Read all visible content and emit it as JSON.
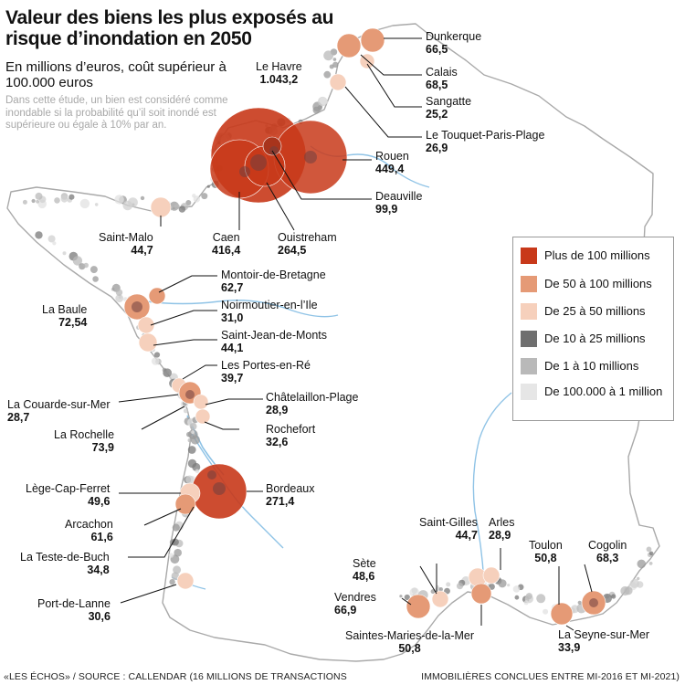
{
  "header": {
    "title": "Valeur des biens les plus exposés au risque d’inondation en 2050",
    "subtitle": "En millions d’euros, coût supérieur à 100.000 euros",
    "note": "Dans cette étude, un bien est considéré comme inondable si la probabilité qu’il soit inondé est supérieure ou égale à 10% par an."
  },
  "legend": {
    "items": [
      {
        "label": "Plus de 100 millions",
        "color": "#c8391a"
      },
      {
        "label": "De 50 à 100 millions",
        "color": "#e59a76"
      },
      {
        "label": "De 25 à 50 millions",
        "color": "#f6d0bc"
      },
      {
        "label": "De 10 à 25 millions",
        "color": "#6f6f6f"
      },
      {
        "label": "De 1 à 10 millions",
        "color": "#b9b9b9"
      },
      {
        "label": "De 100.000 à 1 million",
        "color": "#e6e6e6"
      }
    ]
  },
  "colors": {
    "coast": "#a9a9a9",
    "river": "#8fc3e6",
    "land": "#ffffff",
    "leader": "#111111"
  },
  "cities": {
    "le_havre": {
      "name": "Le Havre",
      "value": "1.043,2"
    },
    "rouen": {
      "name": "Rouen",
      "value": "449,4"
    },
    "deauville": {
      "name": "Deauville",
      "value": "99,9"
    },
    "caen": {
      "name": "Caen",
      "value": "416,4"
    },
    "ouistreham": {
      "name": "Ouistreham",
      "value": "264,5"
    },
    "saint_malo": {
      "name": "Saint-Malo",
      "value": "44,7"
    },
    "dunkerque": {
      "name": "Dunkerque",
      "value": "66,5"
    },
    "calais": {
      "name": "Calais",
      "value": "68,5"
    },
    "sangatte": {
      "name": "Sangatte",
      "value": "25,2"
    },
    "le_touquet": {
      "name": "Le Touquet-Paris-Plage",
      "value": "26,9"
    },
    "montoir": {
      "name": "Montoir-de-Bretagne",
      "value": "62,7"
    },
    "la_baule": {
      "name": "La Baule",
      "value": "72,54"
    },
    "noirmoutier": {
      "name": "Noirmoutier-en-l’Ile",
      "value": "31,0"
    },
    "saint_jean": {
      "name": "Saint-Jean-de-Monts",
      "value": "44,1"
    },
    "portes_en_re": {
      "name": "Les Portes-en-Ré",
      "value": "39,7"
    },
    "la_couarde": {
      "name": "La Couarde-sur-Mer",
      "value": "28,7"
    },
    "chatelaillon": {
      "name": "Châtelaillon-Plage",
      "value": "28,9"
    },
    "la_rochelle": {
      "name": "La Rochelle",
      "value": "73,9"
    },
    "rochefort": {
      "name": "Rochefort",
      "value": "32,6"
    },
    "lege_cap_ferret": {
      "name": "Lège-Cap-Ferret",
      "value": "49,6"
    },
    "bordeaux": {
      "name": "Bordeaux",
      "value": "271,4"
    },
    "arcachon": {
      "name": "Arcachon",
      "value": "61,6"
    },
    "la_teste": {
      "name": "La Teste-de-Buch",
      "value": "34,8"
    },
    "port_de_lanne": {
      "name": "Port-de-Lanne",
      "value": "30,6"
    },
    "saint_gilles": {
      "name": "Saint-Gilles",
      "value": "44,7"
    },
    "arles": {
      "name": "Arles",
      "value": "28,9"
    },
    "sete": {
      "name": "Sète",
      "value": "48,6"
    },
    "vendres": {
      "name": "Vendres",
      "value": "66,9"
    },
    "saintes_maries": {
      "name": "Saintes-Maries-de-la-Mer",
      "value": "50,8"
    },
    "toulon": {
      "name": "Toulon",
      "value": "50,8"
    },
    "cogolin": {
      "name": "Cogolin",
      "value": "68,3"
    },
    "la_seyne": {
      "name": "La Seyne-sur-Mer",
      "value": "33,9"
    }
  },
  "footer": {
    "left": "«LES ÉCHOS» / SOURCE : CALLENDAR (16 MILLIONS DE TRANSACTIONS",
    "right": "IMMOBILIÈRES CONCLUES ENTRE MI-2016 ET MI-2021)"
  }
}
